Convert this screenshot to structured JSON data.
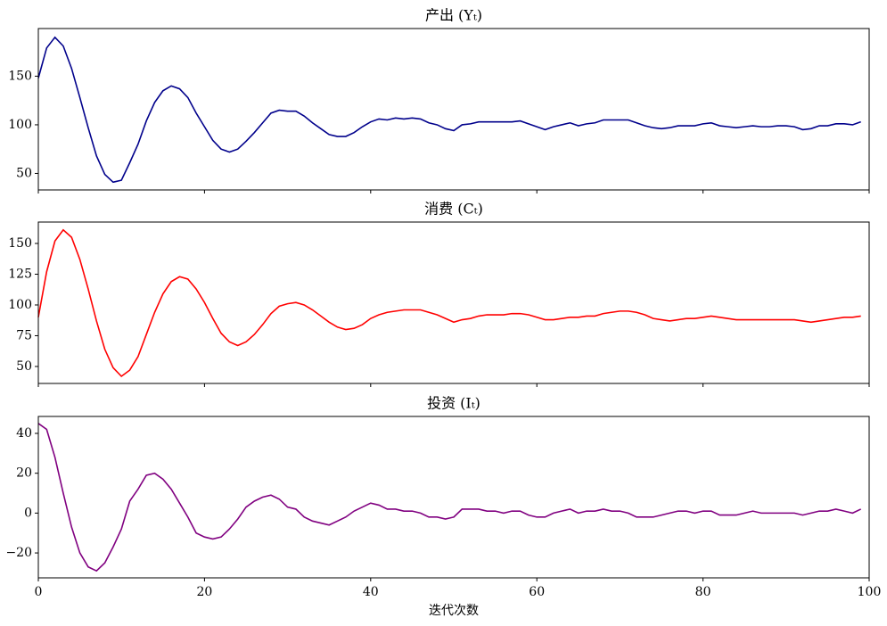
{
  "chart_data": [
    {
      "type": "line",
      "title": "产出 (Yₜ)",
      "x": [
        0,
        1,
        2,
        3,
        4,
        5,
        6,
        7,
        8,
        9,
        10,
        11,
        12,
        13,
        14,
        15,
        16,
        17,
        18,
        19,
        20,
        21,
        22,
        23,
        24,
        25,
        26,
        27,
        28,
        29,
        30,
        31,
        32,
        33,
        34,
        35,
        36,
        37,
        38,
        39,
        40,
        41,
        42,
        43,
        44,
        45,
        46,
        47,
        48,
        49,
        50,
        51,
        52,
        53,
        54,
        55,
        56,
        57,
        58,
        59,
        60,
        61,
        62,
        63,
        64,
        65,
        66,
        67,
        68,
        69,
        70,
        71,
        72,
        73,
        74,
        75,
        76,
        77,
        78,
        79,
        80,
        81,
        82,
        83,
        84,
        85,
        86,
        87,
        88,
        89,
        90,
        91,
        92,
        93,
        94,
        95,
        96,
        97,
        98,
        99
      ],
      "series": [
        {
          "color": "#00008b",
          "values": [
            148,
            179,
            190,
            181,
            158,
            128,
            97,
            68,
            49,
            41,
            43,
            61,
            80,
            104,
            123,
            135,
            140,
            137,
            128,
            112,
            98,
            84,
            75,
            72,
            75,
            83,
            92,
            102,
            112,
            115,
            114,
            114,
            109,
            102,
            96,
            90,
            88,
            88,
            92,
            98,
            103,
            106,
            105,
            107,
            106,
            107,
            106,
            102,
            100,
            96,
            94,
            100,
            101,
            103,
            103,
            103,
            103,
            103,
            104,
            101,
            98,
            95,
            98,
            100,
            102,
            99,
            101,
            102,
            105,
            105,
            105,
            105,
            102,
            99,
            97,
            96,
            97,
            99,
            99,
            99,
            101,
            102,
            99,
            98,
            97,
            98,
            99,
            98,
            98,
            99,
            99,
            98,
            95,
            96,
            99,
            99,
            101,
            101,
            100,
            103
          ]
        }
      ],
      "xlim": [
        0,
        100
      ],
      "xticks": [
        0,
        20,
        40,
        60,
        80,
        100
      ],
      "ylim": [
        33,
        199
      ],
      "yticks": [
        50,
        100,
        150
      ]
    },
    {
      "type": "line",
      "title": "消费 (Cₜ)",
      "x": [
        0,
        1,
        2,
        3,
        4,
        5,
        6,
        7,
        8,
        9,
        10,
        11,
        12,
        13,
        14,
        15,
        16,
        17,
        18,
        19,
        20,
        21,
        22,
        23,
        24,
        25,
        26,
        27,
        28,
        29,
        30,
        31,
        32,
        33,
        34,
        35,
        36,
        37,
        38,
        39,
        40,
        41,
        42,
        43,
        44,
        45,
        46,
        47,
        48,
        49,
        50,
        51,
        52,
        53,
        54,
        55,
        56,
        57,
        58,
        59,
        60,
        61,
        62,
        63,
        64,
        65,
        66,
        67,
        68,
        69,
        70,
        71,
        72,
        73,
        74,
        75,
        76,
        77,
        78,
        79,
        80,
        81,
        82,
        83,
        84,
        85,
        86,
        87,
        88,
        89,
        90,
        91,
        92,
        93,
        94,
        95,
        96,
        97,
        98,
        99
      ],
      "series": [
        {
          "color": "#ff0000",
          "values": [
            90,
            127,
            152,
            161,
            155,
            137,
            113,
            87,
            64,
            49,
            42,
            47,
            58,
            76,
            94,
            109,
            119,
            123,
            121,
            113,
            102,
            89,
            77,
            70,
            67,
            70,
            76,
            84,
            93,
            99,
            101,
            102,
            100,
            96,
            91,
            86,
            82,
            80,
            81,
            84,
            89,
            92,
            94,
            95,
            96,
            96,
            96,
            94,
            92,
            89,
            86,
            88,
            89,
            91,
            92,
            92,
            92,
            93,
            93,
            92,
            90,
            88,
            88,
            89,
            90,
            90,
            91,
            91,
            93,
            94,
            95,
            95,
            94,
            92,
            89,
            88,
            87,
            88,
            89,
            89,
            90,
            91,
            90,
            89,
            88,
            88,
            88,
            88,
            88,
            88,
            88,
            88,
            87,
            86,
            87,
            88,
            89,
            90,
            90,
            91
          ]
        }
      ],
      "xlim": [
        0,
        100
      ],
      "xticks": [
        0,
        20,
        40,
        60,
        80,
        100
      ],
      "ylim": [
        36.2,
        167.4
      ],
      "yticks": [
        50,
        75,
        100,
        125,
        150
      ]
    },
    {
      "type": "line",
      "title": "投资 (Iₜ)",
      "xlabel": "迭代次数",
      "x": [
        0,
        1,
        2,
        3,
        4,
        5,
        6,
        7,
        8,
        9,
        10,
        11,
        12,
        13,
        14,
        15,
        16,
        17,
        18,
        19,
        20,
        21,
        22,
        23,
        24,
        25,
        26,
        27,
        28,
        29,
        30,
        31,
        32,
        33,
        34,
        35,
        36,
        37,
        38,
        39,
        40,
        41,
        42,
        43,
        44,
        45,
        46,
        47,
        48,
        49,
        50,
        51,
        52,
        53,
        54,
        55,
        56,
        57,
        58,
        59,
        60,
        61,
        62,
        63,
        64,
        65,
        66,
        67,
        68,
        69,
        70,
        71,
        72,
        73,
        74,
        75,
        76,
        77,
        78,
        79,
        80,
        81,
        82,
        83,
        84,
        85,
        86,
        87,
        88,
        89,
        90,
        91,
        92,
        93,
        94,
        95,
        96,
        97,
        98,
        99
      ],
      "series": [
        {
          "color": "#800080",
          "values": [
            45,
            42,
            28,
            10,
            -7,
            -20,
            -27,
            -29,
            -25,
            -17,
            -8,
            6,
            12,
            19,
            20,
            17,
            12,
            5,
            -2,
            -10,
            -12,
            -13,
            -12,
            -8,
            -3,
            3,
            6,
            8,
            9,
            7,
            3,
            2,
            -2,
            -4,
            -5,
            -6,
            -4,
            -2,
            1,
            3,
            5,
            4,
            2,
            2,
            1,
            1,
            0,
            -2,
            -2,
            -3,
            -2,
            2,
            2,
            2,
            1,
            1,
            0,
            1,
            1,
            -1,
            -2,
            -2,
            0,
            1,
            2,
            0,
            1,
            1,
            2,
            1,
            1,
            0,
            -2,
            -2,
            -2,
            -1,
            0,
            1,
            1,
            0,
            1,
            1,
            -1,
            -1,
            -1,
            0,
            1,
            0,
            0,
            0,
            0,
            0,
            -1,
            0,
            1,
            1,
            2,
            1,
            0,
            2
          ]
        }
      ],
      "xlim": [
        0,
        100
      ],
      "xticks": [
        0,
        20,
        40,
        60,
        80,
        100
      ],
      "ylim": [
        -32.5,
        48.5
      ],
      "yticks": [
        {
          "value": -20,
          "label": "−20"
        },
        0,
        20,
        40
      ]
    }
  ]
}
